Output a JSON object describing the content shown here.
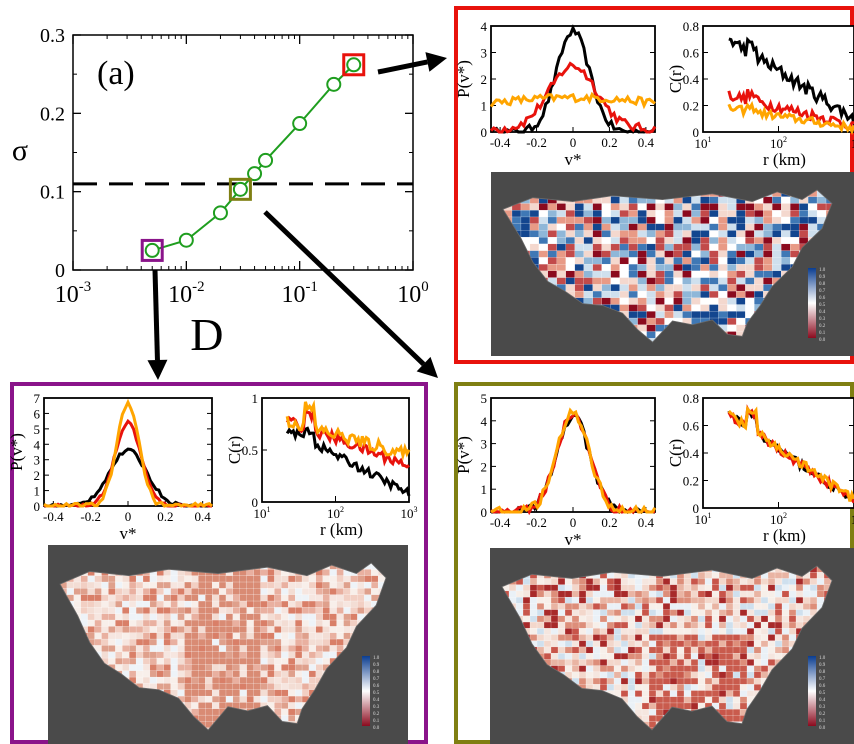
{
  "chart_data": [
    {
      "type": "line",
      "panel_label": "(a)",
      "xlabel": "D",
      "ylabel": "σ",
      "xscale": "log",
      "xlim": [
        0.001,
        1
      ],
      "ylim": [
        0,
        0.3
      ],
      "x_ticks": [
        {
          "value": 0.001,
          "base": "10",
          "exp": "-3"
        },
        {
          "value": 0.01,
          "base": "10",
          "exp": "-2"
        },
        {
          "value": 0.1,
          "base": "10",
          "exp": "-1"
        },
        {
          "value": 1,
          "base": "10",
          "exp": "0"
        }
      ],
      "y_ticks": [
        "0",
        "0.1",
        "0.2",
        "0.3"
      ],
      "line_color": "#1f9e1f",
      "x": [
        0.005,
        0.01,
        0.02,
        0.03,
        0.04,
        0.05,
        0.1,
        0.2,
        0.3
      ],
      "y": [
        0.025,
        0.038,
        0.073,
        0.103,
        0.123,
        0.14,
        0.187,
        0.237,
        0.262
      ],
      "threshold_y": 0.11,
      "highlighted": [
        {
          "x": 0.005,
          "y": 0.025,
          "color": "#8a148a"
        },
        {
          "x": 0.03,
          "y": 0.103,
          "color": "#7f7f12"
        },
        {
          "x": 0.3,
          "y": 0.262,
          "color": "#e8120c"
        }
      ]
    }
  ],
  "panels": [
    {
      "id": "high",
      "border_color": "#e8120c",
      "pdf": {
        "ylabel": "P(v*)",
        "xlabel": "v*",
        "x_ticks": [
          "-0.4",
          "-0.2",
          "0",
          "0.2",
          "0.4"
        ],
        "y_ticks": [
          "0",
          "1",
          "2",
          "3",
          "4"
        ],
        "xlim": [
          -0.45,
          0.45
        ],
        "ylim": [
          0,
          4
        ]
      },
      "corr": {
        "ylabel": "C(r)",
        "xlabel": "r (km)",
        "x_ticks": [
          {
            "base": "10",
            "exp": "1"
          },
          {
            "base": "10",
            "exp": "2"
          },
          {
            "base": "1",
            "exp": ""
          }
        ],
        "y_ticks": [
          "0",
          "0.2",
          "0.4",
          "0.6",
          "0.8"
        ],
        "xlim": [
          10,
          1000
        ],
        "ylim": [
          0,
          0.8
        ]
      },
      "map": {
        "style": "patchwork"
      }
    },
    {
      "id": "low",
      "border_color": "#8a148a",
      "pdf": {
        "ylabel": "P(v*)",
        "xlabel": "v*",
        "x_ticks": [
          "-0.4",
          "-0.2",
          "0",
          "0.2",
          "0.4"
        ],
        "y_ticks": [
          "0",
          "1",
          "2",
          "3",
          "4",
          "5",
          "6",
          "7"
        ],
        "xlim": [
          -0.45,
          0.45
        ],
        "ylim": [
          0,
          7
        ]
      },
      "corr": {
        "ylabel": "C(r)",
        "xlabel": "r (km)",
        "x_ticks": [
          {
            "base": "10",
            "exp": "1"
          },
          {
            "base": "10",
            "exp": "2"
          },
          {
            "base": "10",
            "exp": "3"
          }
        ],
        "y_ticks": [
          "0",
          "0.5",
          "1"
        ],
        "xlim": [
          10,
          1000
        ],
        "ylim": [
          0,
          1
        ]
      },
      "map": {
        "style": "reddish"
      }
    },
    {
      "id": "mid",
      "border_color": "#7f7f12",
      "pdf": {
        "ylabel": "P(v*)",
        "xlabel": "v*",
        "x_ticks": [
          "-0.4",
          "-0.2",
          "0",
          "0.2",
          "0.4"
        ],
        "y_ticks": [
          "0",
          "1",
          "2",
          "3",
          "4",
          "5"
        ],
        "xlim": [
          -0.45,
          0.45
        ],
        "ylim": [
          0,
          5
        ]
      },
      "corr": {
        "ylabel": "C(r)",
        "xlabel": "r (km)",
        "x_ticks": [
          {
            "base": "10",
            "exp": "1"
          },
          {
            "base": "10",
            "exp": "2"
          },
          {
            "base": "1",
            "exp": ""
          }
        ],
        "y_ticks": [
          "0",
          "0.2",
          "0.4",
          "0.6",
          "0.8"
        ],
        "xlim": [
          10,
          1000
        ],
        "ylim": [
          0,
          0.8
        ]
      },
      "map": {
        "style": "mixed"
      }
    }
  ],
  "colorbar_ticks": [
    "1.0",
    "0.9",
    "0.8",
    "0.7",
    "0.6",
    "0.5",
    "0.4",
    "0.3",
    "0.2",
    "0.1",
    "0.0"
  ],
  "series_colors": [
    "#000000",
    "#e8120c",
    "#ffa500"
  ]
}
